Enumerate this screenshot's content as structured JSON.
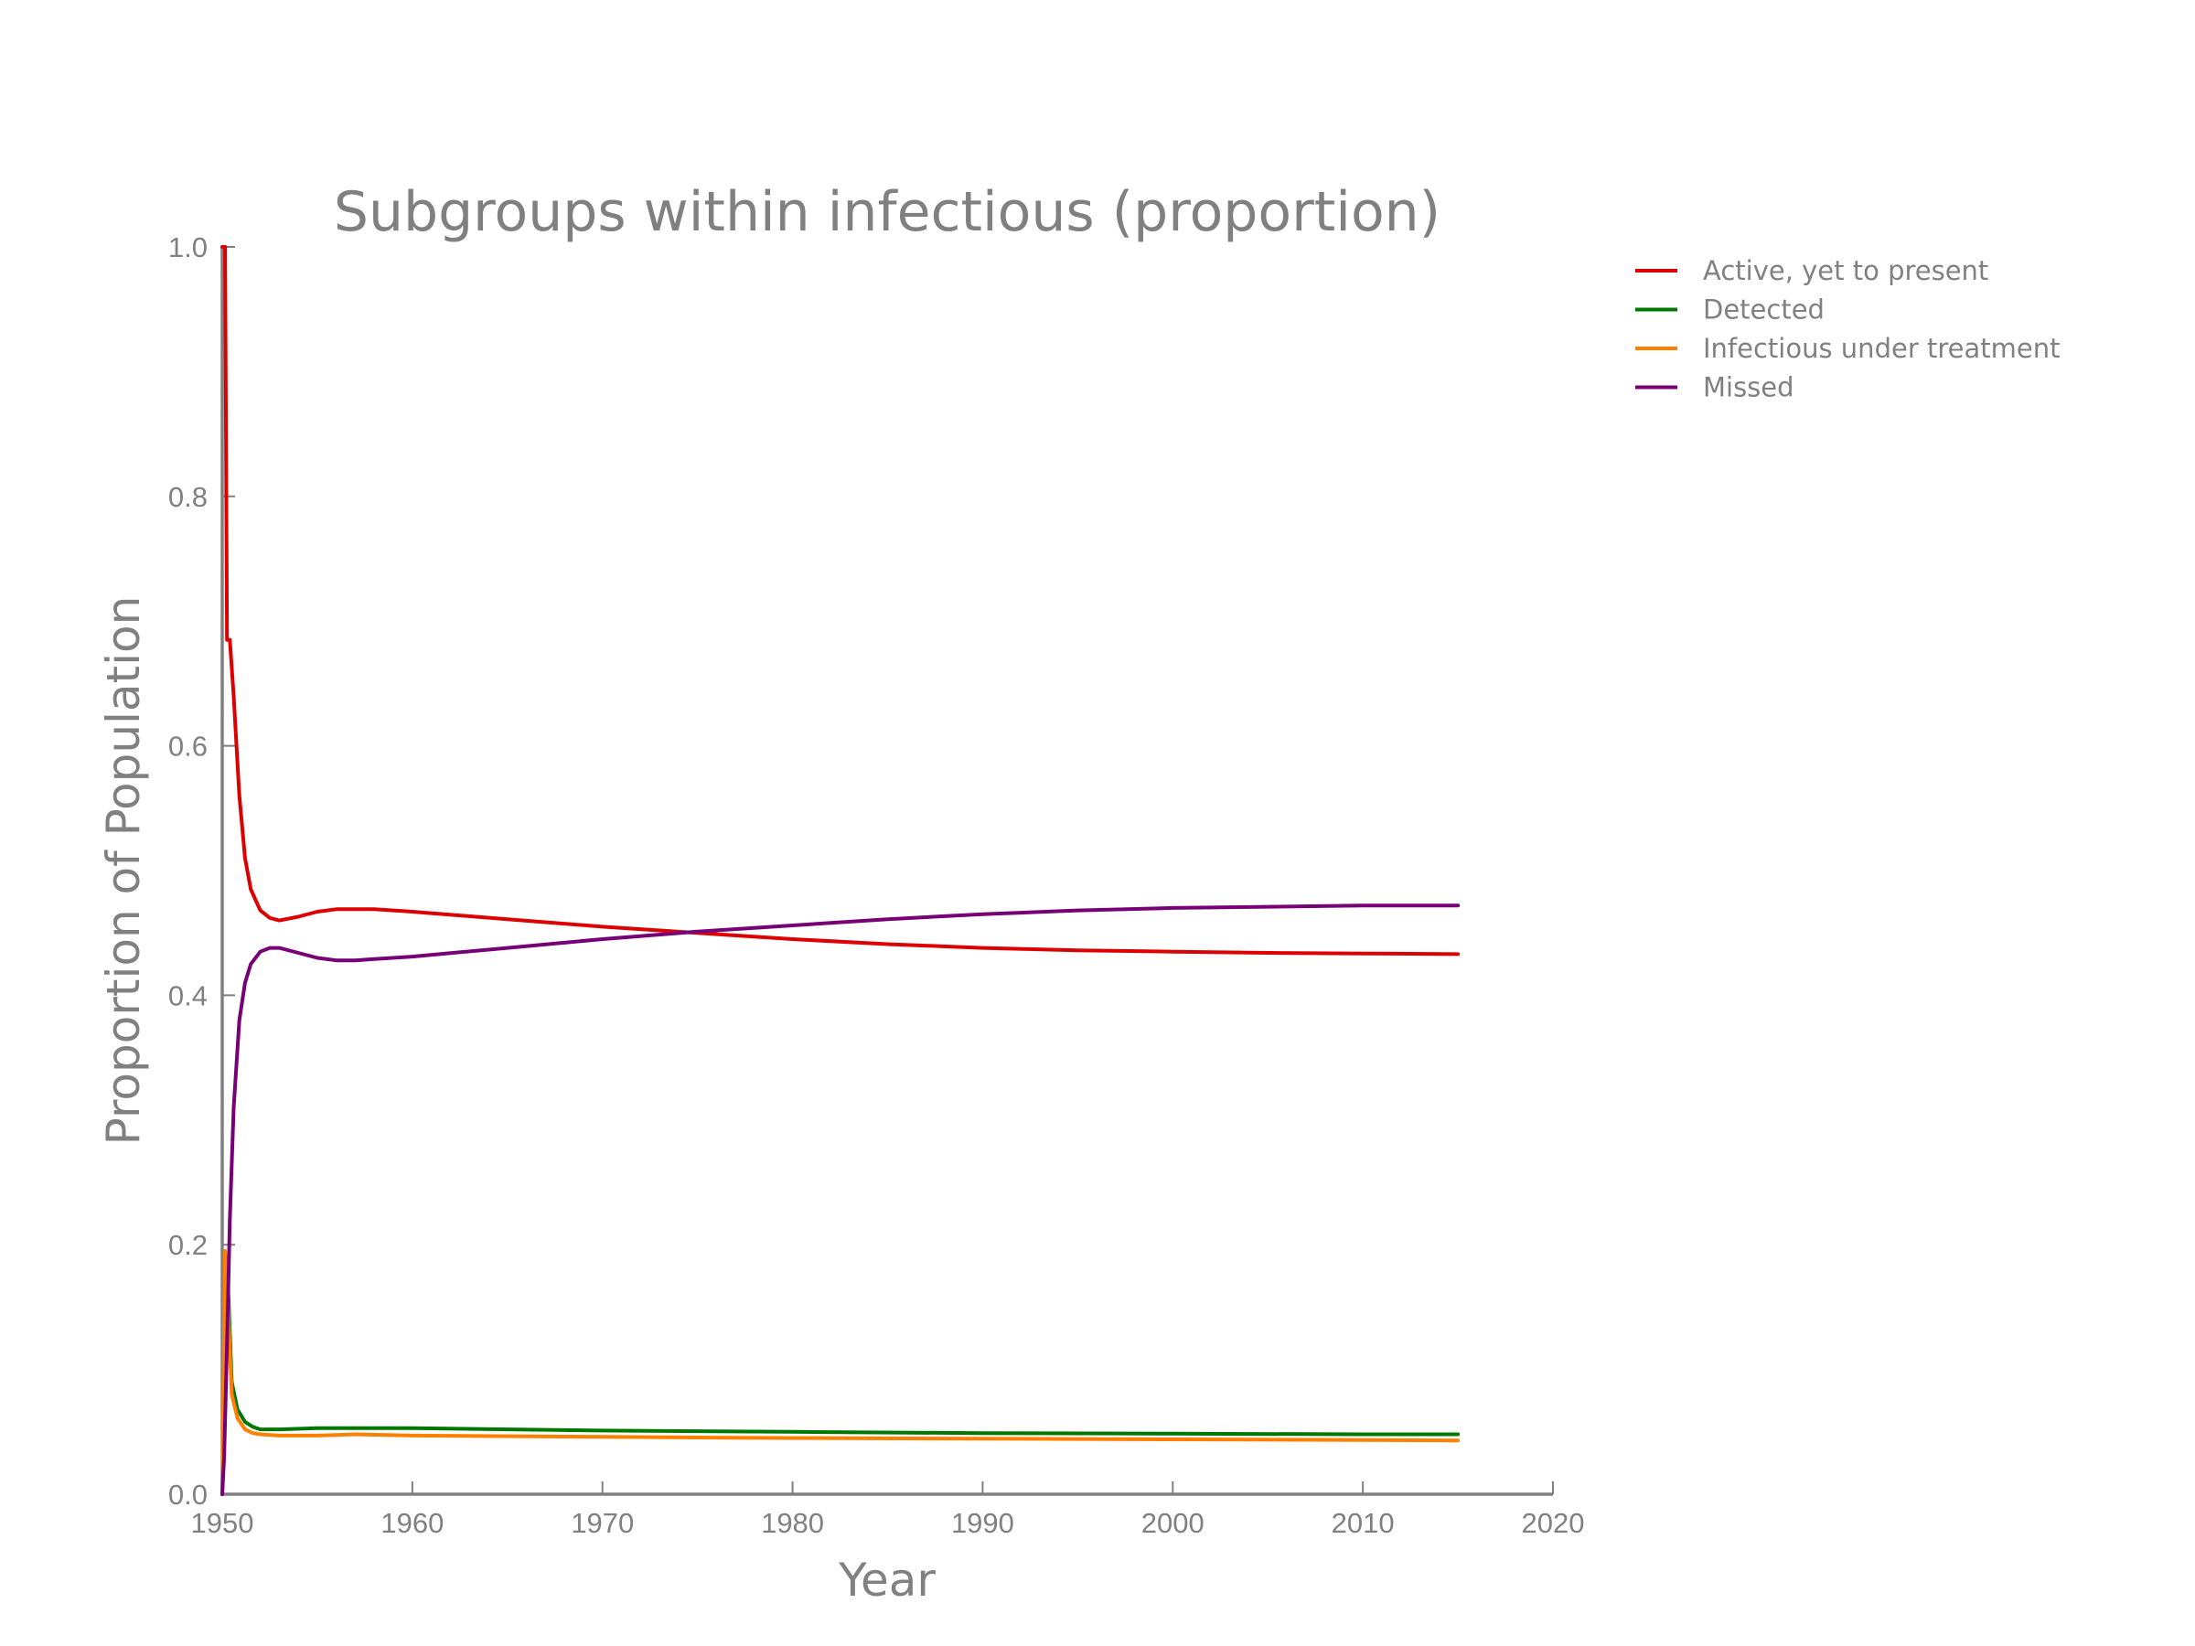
{
  "chart_data": {
    "type": "line",
    "title": "Subgroups within infectious (proportion)",
    "xlabel": "Year",
    "ylabel": "Proportion of Population",
    "xlim": [
      1950,
      2020
    ],
    "ylim": [
      0.0,
      1.0
    ],
    "xticks": [
      "1950",
      "1960",
      "1970",
      "1980",
      "1990",
      "2000",
      "2010",
      "2020"
    ],
    "yticks": [
      "0.0",
      "0.2",
      "0.4",
      "0.6",
      "0.8",
      "1.0"
    ],
    "grid": false,
    "legend_position": "right-outside-top",
    "series": [
      {
        "name": "Active, yet to present",
        "color": "#dd0000",
        "x": [
          1950.0,
          1950.15,
          1950.25,
          1950.4,
          1950.6,
          1950.9,
          1951.2,
          1951.5,
          1952.0,
          1952.5,
          1953.0,
          1954.0,
          1955.0,
          1956.0,
          1957.0,
          1958.0,
          1960.0,
          1965.0,
          1970.0,
          1975.0,
          1980.0,
          1985.0,
          1990.0,
          1995.0,
          2000.0,
          2005.0,
          2010.0,
          2015.0
        ],
        "y": [
          1.0,
          1.0,
          0.685,
          0.685,
          0.64,
          0.56,
          0.51,
          0.485,
          0.468,
          0.462,
          0.46,
          0.463,
          0.467,
          0.469,
          0.469,
          0.469,
          0.467,
          0.461,
          0.455,
          0.45,
          0.445,
          0.441,
          0.438,
          0.436,
          0.435,
          0.434,
          0.4335,
          0.433
        ]
      },
      {
        "name": "Detected",
        "color": "#007700",
        "x": [
          1950.0,
          1950.2,
          1950.3,
          1950.5,
          1950.8,
          1951.2,
          1951.6,
          1952.0,
          1953.0,
          1955.0,
          1957.0,
          1960.0,
          1970.0,
          1980.0,
          1990.0,
          2000.0,
          2010.0,
          2015.0
        ],
        "y": [
          0.0,
          0.19,
          0.17,
          0.09,
          0.068,
          0.058,
          0.054,
          0.052,
          0.052,
          0.053,
          0.053,
          0.053,
          0.051,
          0.05,
          0.049,
          0.0485,
          0.048,
          0.048
        ]
      },
      {
        "name": "Infectious under treatment",
        "color": "#ff8000",
        "x": [
          1950.0,
          1950.15,
          1950.25,
          1950.5,
          1950.8,
          1951.2,
          1951.6,
          1952.0,
          1953.0,
          1955.0,
          1957.0,
          1960.0,
          1970.0,
          1980.0,
          1990.0,
          2000.0,
          2010.0,
          2015.0
        ],
        "y": [
          0.0,
          0.195,
          0.17,
          0.08,
          0.061,
          0.052,
          0.049,
          0.048,
          0.047,
          0.047,
          0.048,
          0.047,
          0.046,
          0.045,
          0.0445,
          0.044,
          0.0435,
          0.043
        ]
      },
      {
        "name": "Missed",
        "color": "#770077",
        "x": [
          1950.0,
          1950.1,
          1950.25,
          1950.4,
          1950.6,
          1950.9,
          1951.2,
          1951.5,
          1952.0,
          1952.5,
          1953.0,
          1954.0,
          1955.0,
          1956.0,
          1957.0,
          1958.0,
          1960.0,
          1965.0,
          1970.0,
          1975.0,
          1980.0,
          1985.0,
          1990.0,
          1995.0,
          2000.0,
          2005.0,
          2010.0,
          2015.0
        ],
        "y": [
          0.0,
          0.03,
          0.12,
          0.22,
          0.31,
          0.38,
          0.41,
          0.425,
          0.435,
          0.438,
          0.438,
          0.434,
          0.43,
          0.428,
          0.428,
          0.429,
          0.431,
          0.438,
          0.445,
          0.451,
          0.456,
          0.461,
          0.465,
          0.468,
          0.47,
          0.471,
          0.472,
          0.472
        ]
      }
    ]
  }
}
